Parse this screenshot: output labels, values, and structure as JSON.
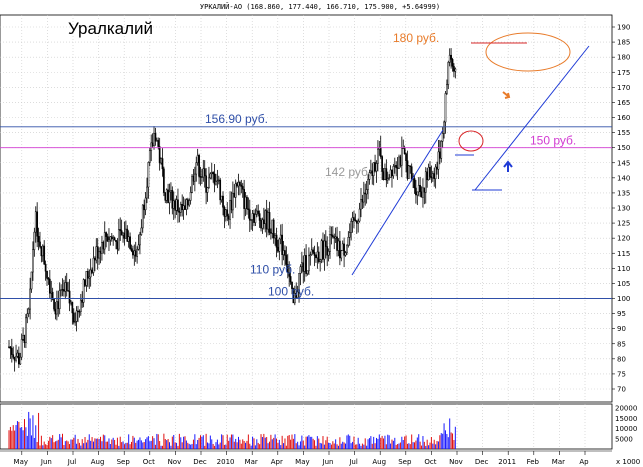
{
  "chart_data": {
    "type": "candlestick",
    "header": "УРКАЛИЙ-АО (168.860, 177.440, 166.710, 175.900, +5.64999)",
    "title": "Уралкалий",
    "ylim": [
      70,
      190
    ],
    "y_ticks": [
      70,
      75,
      80,
      85,
      90,
      95,
      100,
      105,
      110,
      115,
      120,
      125,
      130,
      135,
      140,
      145,
      150,
      155,
      160,
      165,
      170,
      175,
      180,
      185,
      190
    ],
    "x_ticks": [
      "May",
      "Jun",
      "Jul",
      "Aug",
      "Sep",
      "Oct",
      "Nov",
      "Dec",
      "2010",
      "Mar",
      "Apr",
      "May",
      "Jun",
      "Jul",
      "Aug",
      "Sep",
      "Oct",
      "Nov",
      "Dec",
      "2011",
      "Feb",
      "Mar",
      "Ap"
    ],
    "price_path": [
      {
        "month": 0,
        "price": 84
      },
      {
        "month": 0.4,
        "price": 80
      },
      {
        "month": 0.8,
        "price": 96
      },
      {
        "month": 1.0,
        "price": 127
      },
      {
        "month": 1.4,
        "price": 112
      },
      {
        "month": 1.8,
        "price": 98
      },
      {
        "month": 2.2,
        "price": 102
      },
      {
        "month": 2.6,
        "price": 94
      },
      {
        "month": 3.0,
        "price": 106
      },
      {
        "month": 3.4,
        "price": 115
      },
      {
        "month": 3.8,
        "price": 121
      },
      {
        "month": 4.2,
        "price": 119
      },
      {
        "month": 4.6,
        "price": 122
      },
      {
        "month": 5.0,
        "price": 114
      },
      {
        "month": 5.4,
        "price": 141
      },
      {
        "month": 5.7,
        "price": 156
      },
      {
        "month": 6.1,
        "price": 136
      },
      {
        "month": 6.5,
        "price": 131
      },
      {
        "month": 6.9,
        "price": 128
      },
      {
        "month": 7.3,
        "price": 146
      },
      {
        "month": 7.7,
        "price": 138
      },
      {
        "month": 8.1,
        "price": 141
      },
      {
        "month": 8.5,
        "price": 126
      },
      {
        "month": 8.9,
        "price": 139
      },
      {
        "month": 9.3,
        "price": 130
      },
      {
        "month": 9.7,
        "price": 127
      },
      {
        "month": 10.1,
        "price": 126
      },
      {
        "month": 10.5,
        "price": 119
      },
      {
        "month": 10.8,
        "price": 116
      },
      {
        "month": 11.1,
        "price": 97
      },
      {
        "month": 11.4,
        "price": 110
      },
      {
        "month": 11.8,
        "price": 113
      },
      {
        "month": 12.2,
        "price": 116
      },
      {
        "month": 12.6,
        "price": 119
      },
      {
        "month": 13.0,
        "price": 115
      },
      {
        "month": 13.4,
        "price": 123
      },
      {
        "month": 13.8,
        "price": 132
      },
      {
        "month": 14.2,
        "price": 142
      },
      {
        "month": 14.4,
        "price": 149
      },
      {
        "month": 14.7,
        "price": 140
      },
      {
        "month": 15.1,
        "price": 146
      },
      {
        "month": 15.4,
        "price": 147
      },
      {
        "month": 15.8,
        "price": 138
      },
      {
        "month": 16.1,
        "price": 136
      },
      {
        "month": 16.4,
        "price": 141
      },
      {
        "month": 16.7,
        "price": 143
      },
      {
        "month": 16.9,
        "price": 152
      },
      {
        "month": 17.05,
        "price": 166
      },
      {
        "month": 17.2,
        "price": 182
      },
      {
        "month": 17.35,
        "price": 176
      },
      {
        "month": 17.45,
        "price": 173
      }
    ],
    "volume_ticks": [
      5000,
      10000,
      15000,
      20000
    ],
    "volume_unit": "x 1000",
    "horizontal_levels": [
      {
        "price": 156.9,
        "label": "156.90 руб.",
        "color": "#2f4fa8"
      },
      {
        "price": 150,
        "label": "150 руб.",
        "color": "#d23cd2"
      },
      {
        "price": 142,
        "label": "142 руб.",
        "color": "#9a9a9a"
      },
      {
        "price": 110,
        "label": "110 руб.",
        "color": "#2f4fa8"
      },
      {
        "price": 100,
        "label": "100 руб.",
        "color": "#2f4fa8"
      }
    ],
    "target_label": "180 руб.",
    "colors": {
      "candles": "#000000",
      "trend": "#1f3bd6",
      "circle": "#e87b2a",
      "volume_up": "#1a1aff",
      "volume_down": "#e01010"
    }
  }
}
